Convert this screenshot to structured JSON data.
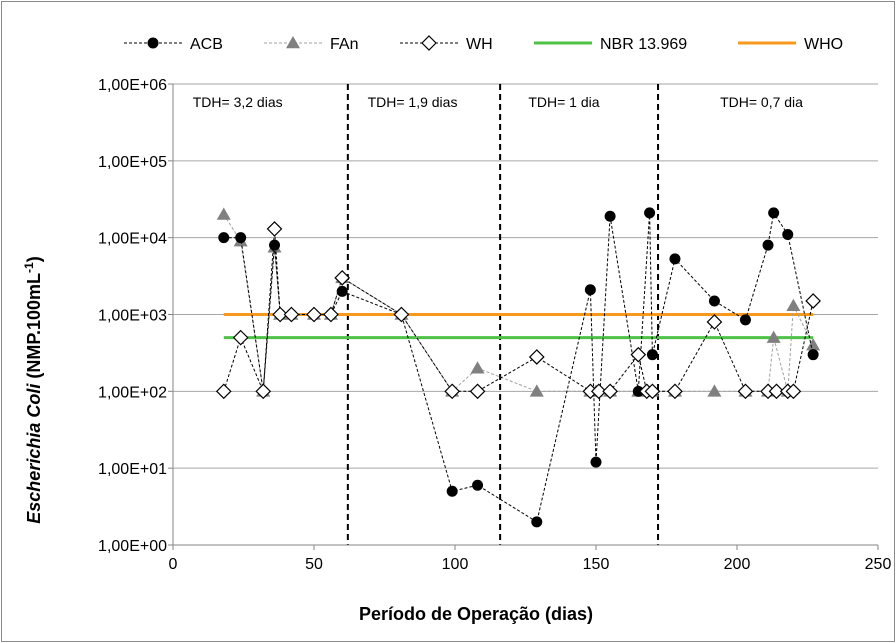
{
  "chart_data": {
    "type": "scatter",
    "xlabel": "Período de Operação (dias)",
    "ylabel_parts": [
      "Escherichia Coli",
      " (NMP.100mL",
      "-1",
      ")"
    ],
    "xlim": [
      0,
      250
    ],
    "ylim_log10": [
      0,
      6
    ],
    "y_scale": "log",
    "x_ticks": [
      "0",
      "50",
      "100",
      "150",
      "200",
      "250"
    ],
    "y_ticks": [
      "1,00E+00",
      "1,00E+01",
      "1,00E+02",
      "1,00E+03",
      "1,00E+04",
      "1,00E+05",
      "1,00E+06"
    ],
    "grid": "horizontal",
    "legend_position": "top",
    "series": [
      {
        "name": "ACB",
        "style": "dashed-line",
        "marker": "circle",
        "color": "#000000",
        "x": [
          18,
          24,
          32,
          36,
          38,
          42,
          50,
          56,
          60,
          81,
          99,
          108,
          129,
          148,
          150,
          155,
          165,
          169,
          170,
          178,
          192,
          203,
          211,
          213,
          218,
          227
        ],
        "y": [
          10000,
          10000,
          100,
          8000,
          1000,
          1000,
          1000,
          1000,
          2000,
          1000,
          5,
          6,
          2,
          2100,
          12,
          19000,
          100,
          21000,
          300,
          5300,
          1500,
          850,
          8000,
          21000,
          11000,
          300
        ]
      },
      {
        "name": "FAn",
        "style": "dashed-line-light",
        "marker": "triangle",
        "color": "#808080",
        "x": [
          18,
          24,
          32,
          36,
          38,
          42,
          50,
          56,
          60,
          81,
          99,
          108,
          129,
          148,
          150,
          155,
          165,
          168,
          170,
          178,
          192,
          203,
          211,
          213,
          218,
          220,
          227
        ],
        "y": [
          20000,
          9000,
          100,
          7500,
          1000,
          1000,
          1000,
          1000,
          3000,
          1000,
          100,
          200,
          100,
          100,
          100,
          100,
          100,
          100,
          100,
          100,
          100,
          100,
          100,
          500,
          100,
          1300,
          400
        ]
      },
      {
        "name": "WH",
        "style": "dashed-line",
        "marker": "diamond-open",
        "color": "#000000",
        "x": [
          18,
          24,
          32,
          36,
          38,
          42,
          50,
          56,
          60,
          81,
          99,
          108,
          129,
          148,
          151,
          155,
          165,
          168,
          170,
          178,
          192,
          203,
          211,
          214,
          218,
          220,
          227
        ],
        "y": [
          100,
          500,
          100,
          13000,
          1000,
          1000,
          1000,
          1000,
          3000,
          1000,
          100,
          100,
          280,
          100,
          100,
          100,
          300,
          100,
          100,
          100,
          800,
          100,
          100,
          100,
          100,
          100,
          1500
        ]
      },
      {
        "name": "NBR 13.969",
        "style": "solid-line",
        "marker": "none",
        "color": "#4dc247",
        "x": [
          18,
          227
        ],
        "y": [
          500,
          500
        ]
      },
      {
        "name": "WHO",
        "style": "solid-line",
        "marker": "none",
        "color": "#f79a1b",
        "x": [
          18,
          227
        ],
        "y": [
          1000,
          1000
        ]
      }
    ],
    "phase_dividers_x": [
      62,
      116,
      172
    ],
    "annotations": [
      {
        "text": "TDH= 3,2 dias",
        "x": 7,
        "ylog": 5.75
      },
      {
        "text": "TDH= 1,9 dias",
        "x": 69,
        "ylog": 5.75
      },
      {
        "text": "TDH= 1 dia",
        "x": 126,
        "ylog": 5.75
      },
      {
        "text": "TDH= 0,7 dia",
        "x": 194,
        "ylog": 5.75
      }
    ]
  }
}
